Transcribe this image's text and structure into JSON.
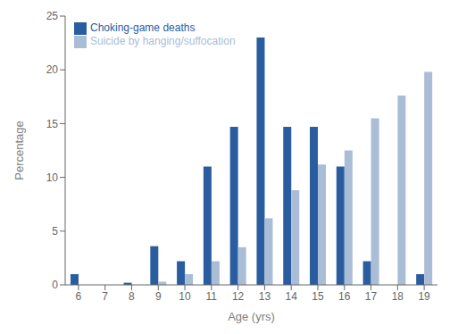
{
  "chart_data": {
    "type": "bar",
    "xlabel": "Age (yrs)",
    "ylabel": "Percentage",
    "categories": [
      "6",
      "7",
      "8",
      "9",
      "10",
      "11",
      "12",
      "13",
      "14",
      "15",
      "16",
      "17",
      "18",
      "19"
    ],
    "series": [
      {
        "name": "Choking-game deaths",
        "color": "#2a5d9f",
        "values": [
          1.0,
          0.0,
          0.2,
          3.6,
          2.2,
          11.0,
          14.7,
          23.0,
          14.7,
          14.7,
          11.0,
          2.2,
          0.0,
          1.0
        ]
      },
      {
        "name": "Suicide by hanging/suffocation",
        "color": "#aabdd6",
        "values": [
          0.0,
          0.0,
          0.0,
          0.3,
          1.0,
          2.2,
          3.5,
          6.2,
          8.8,
          11.2,
          12.5,
          15.5,
          17.6,
          19.8
        ]
      }
    ],
    "ylim": [
      0,
      25
    ],
    "yticks": [
      0,
      5,
      10,
      15,
      20,
      25
    ],
    "grid": false,
    "legend": "upper left"
  }
}
